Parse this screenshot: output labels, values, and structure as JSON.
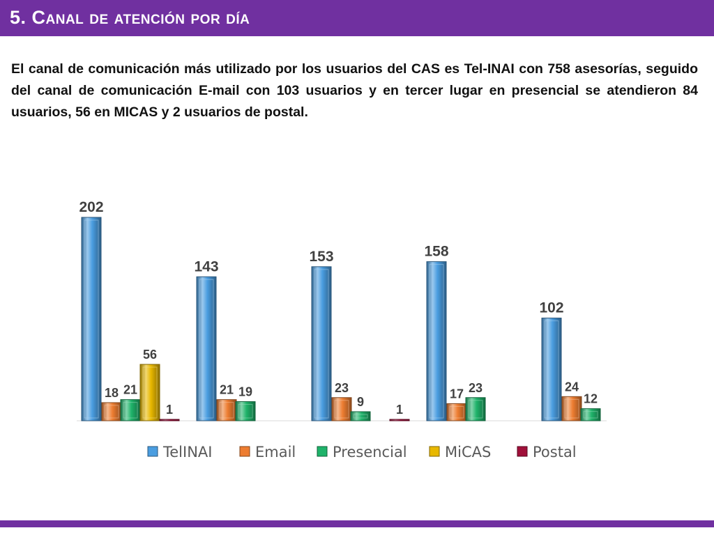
{
  "slide": {
    "title": "5. Canal de atención por día",
    "description": "El canal de comunicación más utilizado por los usuarios del CAS es Tel-INAI con 758 asesorías, seguido del canal de comunicación E-mail con 103 usuarios y en tercer lugar en presencial se atendieron 84 usuarios, 56 en MICAS  y 2 usuarios de postal."
  },
  "colors": {
    "header": "#7030a0",
    "TelINAI": "#4a9de0",
    "Email": "#ed7d31",
    "Presencial": "#1fb36a",
    "MiCAS": "#e8b800",
    "Postal": "#a0103a"
  },
  "chart_data": {
    "type": "bar",
    "categories": [
      "",
      "",
      "",
      "",
      ""
    ],
    "series": [
      {
        "name": "TelINAI",
        "values": [
          202,
          143,
          153,
          158,
          102
        ]
      },
      {
        "name": "Email",
        "values": [
          18,
          21,
          23,
          17,
          24
        ]
      },
      {
        "name": "Presencial",
        "values": [
          21,
          19,
          9,
          23,
          12
        ]
      },
      {
        "name": "MiCAS",
        "values": [
          56,
          null,
          null,
          null,
          null
        ]
      },
      {
        "name": "Postal",
        "values": [
          1,
          null,
          1,
          null,
          null
        ]
      }
    ],
    "ylim": [
      0,
      202
    ],
    "grid": false,
    "legend_position": "bottom",
    "style": "3d-bevel"
  }
}
